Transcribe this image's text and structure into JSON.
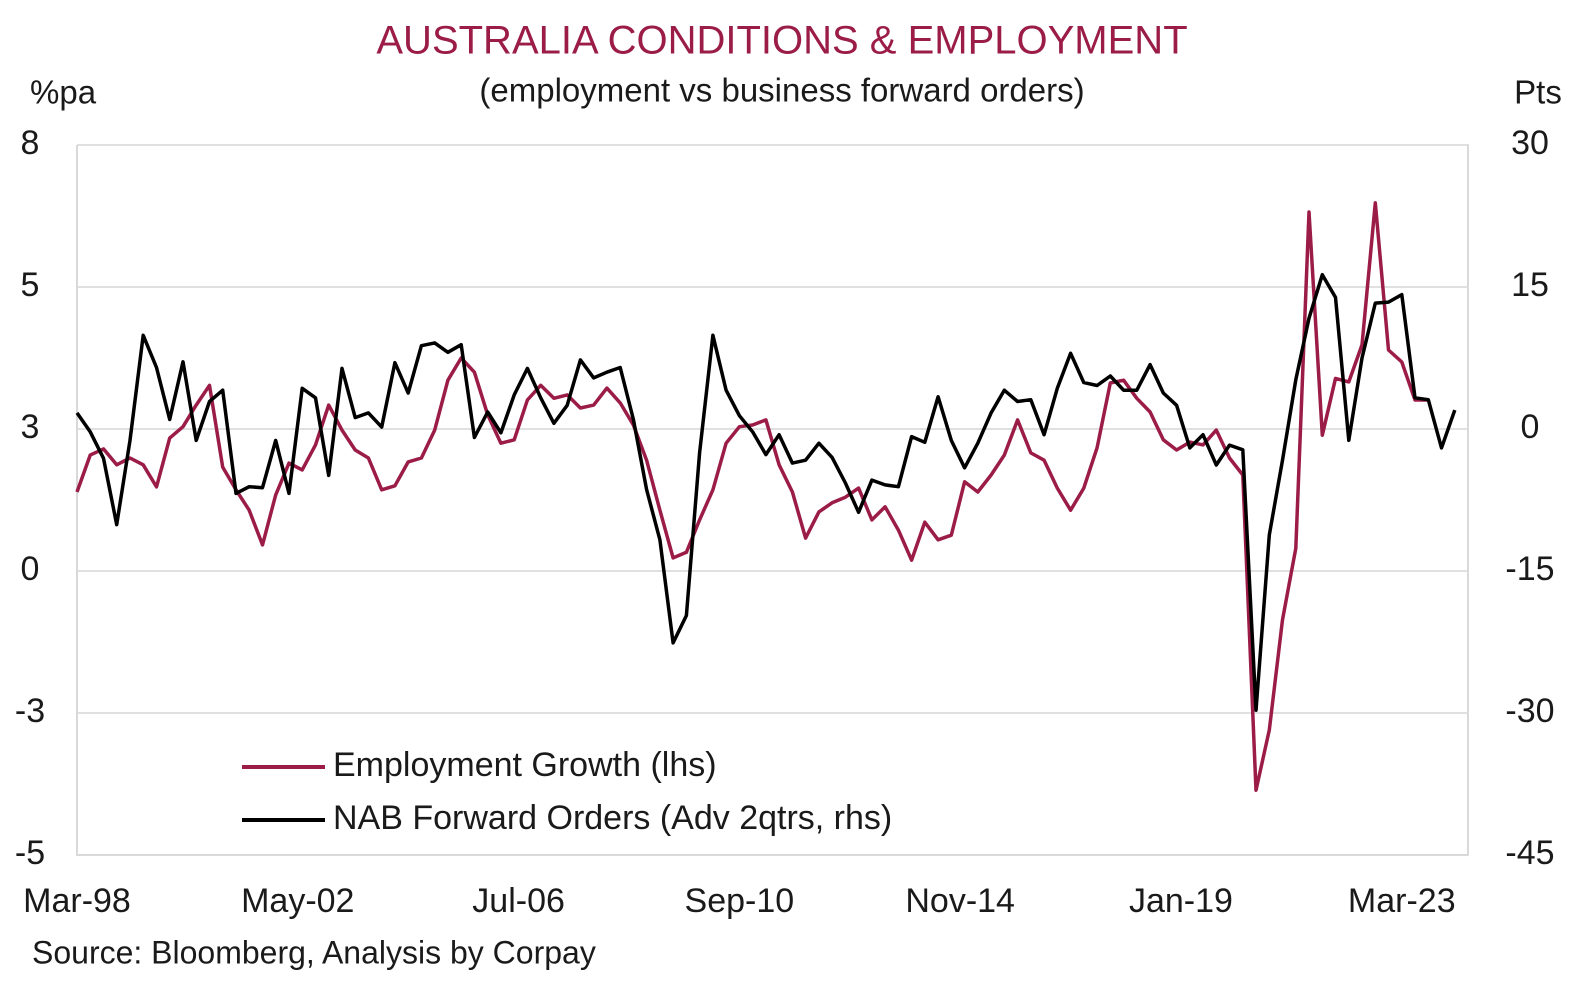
{
  "chart_data": {
    "type": "line",
    "title": "AUSTRALIA CONDITIONS & EMPLOYMENT",
    "subtitle": "(employment vs business forward orders)",
    "ylabel": "%pa",
    "y2label": "Pts",
    "source": "Source: Bloomberg, Analysis by Corpay",
    "title_color": "#9b1d47",
    "grid": true,
    "ylim": [
      -5,
      7.5
    ],
    "yticks": [
      {
        "value": 7.5,
        "label": "8"
      },
      5,
      {
        "value": 2.5,
        "label": "3"
      },
      0,
      {
        "value": -2.5,
        "label": "-3"
      },
      -5
    ],
    "y2lim": [
      -45,
      30
    ],
    "y2ticks": [
      30,
      15,
      0,
      -15,
      -30,
      -45
    ],
    "xlim": [
      "1998-03",
      "2024-06"
    ],
    "xticks": [
      {
        "value": "1998-03",
        "label": "Mar-98"
      },
      {
        "value": "2002-05",
        "label": "May-02"
      },
      {
        "value": "2006-07",
        "label": "Jul-06"
      },
      {
        "value": "2010-09",
        "label": "Sep-10"
      },
      {
        "value": "2014-11",
        "label": "Nov-14"
      },
      {
        "value": "2019-01",
        "label": "Jan-19"
      },
      {
        "value": "2023-03",
        "label": "Mar-23"
      }
    ],
    "x": [
      "1998-03",
      "1998-06",
      "1998-09",
      "1998-12",
      "1999-03",
      "1999-06",
      "1999-09",
      "1999-12",
      "2000-03",
      "2000-06",
      "2000-09",
      "2000-12",
      "2001-03",
      "2001-06",
      "2001-09",
      "2001-12",
      "2002-03",
      "2002-06",
      "2002-09",
      "2002-12",
      "2003-03",
      "2003-06",
      "2003-09",
      "2003-12",
      "2004-03",
      "2004-06",
      "2004-09",
      "2004-12",
      "2005-03",
      "2005-06",
      "2005-09",
      "2005-12",
      "2006-03",
      "2006-06",
      "2006-09",
      "2006-12",
      "2007-03",
      "2007-06",
      "2007-09",
      "2007-12",
      "2008-03",
      "2008-06",
      "2008-09",
      "2008-12",
      "2009-03",
      "2009-06",
      "2009-09",
      "2009-12",
      "2010-03",
      "2010-06",
      "2010-09",
      "2010-12",
      "2011-03",
      "2011-06",
      "2011-09",
      "2011-12",
      "2012-03",
      "2012-06",
      "2012-09",
      "2012-12",
      "2013-03",
      "2013-06",
      "2013-09",
      "2013-12",
      "2014-03",
      "2014-06",
      "2014-09",
      "2014-12",
      "2015-03",
      "2015-06",
      "2015-09",
      "2015-12",
      "2016-03",
      "2016-06",
      "2016-09",
      "2016-12",
      "2017-03",
      "2017-06",
      "2017-09",
      "2017-12",
      "2018-03",
      "2018-06",
      "2018-09",
      "2018-12",
      "2019-03",
      "2019-06",
      "2019-09",
      "2019-12",
      "2020-03",
      "2020-06",
      "2020-09",
      "2020-12",
      "2021-03",
      "2021-06",
      "2021-09",
      "2021-12",
      "2022-03",
      "2022-06",
      "2022-09",
      "2022-12",
      "2023-03",
      "2023-06",
      "2023-09",
      "2023-12",
      "2024-03"
    ],
    "series": [
      {
        "name": "Employment Growth (lhs)",
        "color": "#9b1d47",
        "axis": "y",
        "values": [
          1.39,
          2.04,
          2.15,
          1.87,
          1.99,
          1.87,
          1.48,
          2.34,
          2.54,
          2.92,
          3.27,
          1.83,
          1.43,
          1.07,
          0.46,
          1.34,
          1.9,
          1.78,
          2.22,
          2.92,
          2.48,
          2.13,
          1.99,
          1.43,
          1.5,
          1.92,
          1.99,
          2.48,
          3.36,
          3.75,
          3.5,
          2.75,
          2.25,
          2.31,
          3.01,
          3.27,
          3.04,
          3.1,
          2.87,
          2.92,
          3.22,
          2.96,
          2.57,
          1.95,
          1.07,
          0.23,
          0.33,
          0.9,
          1.43,
          2.25,
          2.54,
          2.57,
          2.66,
          1.87,
          1.39,
          0.58,
          1.04,
          1.2,
          1.3,
          1.46,
          0.9,
          1.13,
          0.72,
          0.19,
          0.86,
          0.55,
          0.63,
          1.57,
          1.39,
          1.69,
          2.04,
          2.66,
          2.08,
          1.95,
          1.46,
          1.07,
          1.46,
          2.17,
          3.31,
          3.36,
          3.04,
          2.8,
          2.31,
          2.13,
          2.27,
          2.22,
          2.48,
          1.99,
          1.69,
          -3.86,
          -2.8,
          -0.86,
          0.4,
          6.32,
          2.39,
          3.39,
          3.33,
          3.98,
          6.48,
          3.89,
          3.68,
          3.01,
          3.01,
          null,
          null
        ]
      },
      {
        "name": "NAB Forward Orders (Adv 2qtrs, rhs)",
        "color": "#000000",
        "axis": "y2",
        "values": [
          1.7,
          -0.3,
          -3.1,
          -10.1,
          -1.2,
          9.9,
          6.5,
          1.0,
          7.1,
          -1.2,
          2.9,
          4.1,
          -6.8,
          -6.1,
          -6.2,
          -1.2,
          -6.8,
          4.3,
          3.3,
          -4.9,
          6.4,
          1.2,
          1.7,
          0.2,
          7.0,
          3.8,
          8.8,
          9.1,
          8.1,
          8.9,
          -0.9,
          1.8,
          -0.4,
          3.6,
          6.4,
          3.3,
          0.6,
          2.5,
          7.3,
          5.4,
          6.0,
          6.5,
          1.0,
          -6.4,
          -11.7,
          -22.6,
          -19.7,
          -2.5,
          9.9,
          4.1,
          1.4,
          -0.3,
          -2.7,
          -0.6,
          -3.6,
          -3.3,
          -1.5,
          -3.0,
          -5.7,
          -8.8,
          -5.4,
          -5.9,
          -6.1,
          -0.8,
          -1.4,
          3.4,
          -1.2,
          -4.1,
          -1.5,
          1.7,
          4.1,
          2.9,
          3.1,
          -0.6,
          4.3,
          8.0,
          4.9,
          4.6,
          5.6,
          4.1,
          4.1,
          6.8,
          3.8,
          2.5,
          -2.0,
          -0.6,
          -3.8,
          -1.7,
          -2.2,
          -29.7,
          -11.2,
          -3.3,
          5.2,
          11.7,
          16.3,
          13.9,
          -1.2,
          7.5,
          13.3,
          13.4,
          14.2,
          3.3,
          3.1,
          -2.0,
          2.0
        ]
      }
    ]
  }
}
